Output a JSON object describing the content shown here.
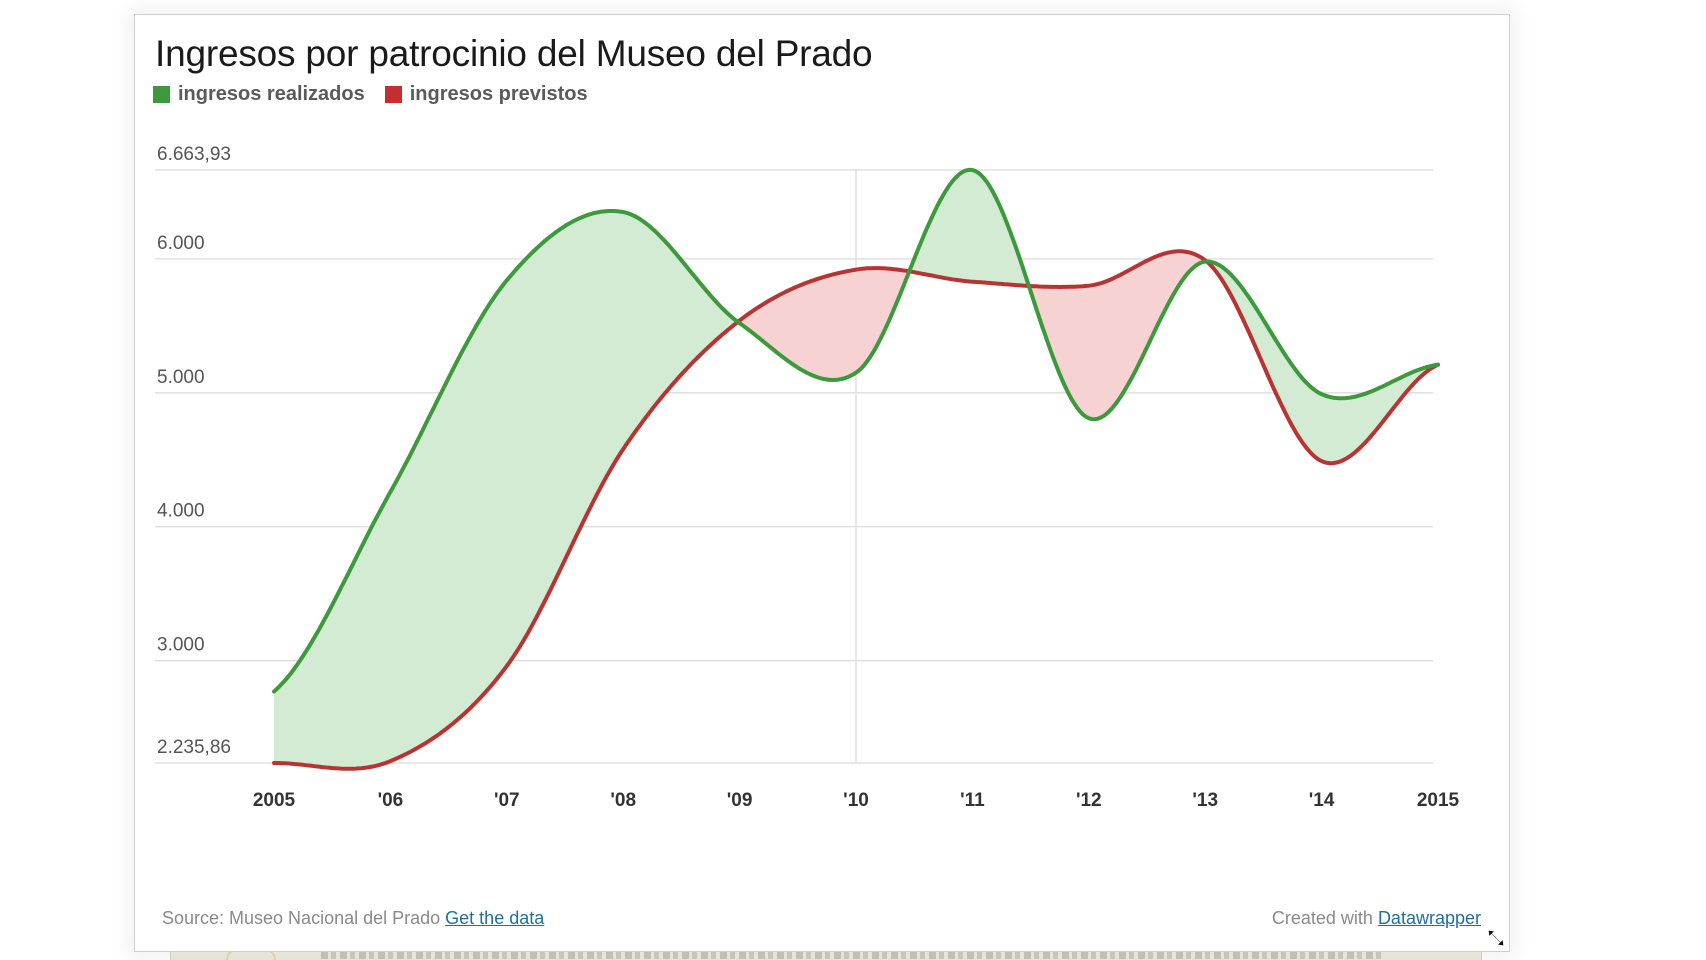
{
  "header": {
    "title": "Ingresos por patrocinio del Museo del Prado"
  },
  "legend": [
    {
      "label": "ingresos realizados",
      "color": "#3c9a3c"
    },
    {
      "label": "ingresos previstos",
      "color": "#c42e2e"
    }
  ],
  "footer": {
    "source_prefix": "Source: Museo Nacional del Prado",
    "source_link": "Get the data",
    "created_prefix": "Created with",
    "created_link": "Datawrapper"
  },
  "colors": {
    "realizados_line": "#3c9a3c",
    "previstos_line": "#b83434",
    "fill_above": "#d3ebd3",
    "fill_below": "#f6d2d2",
    "grid": "#dcdcdc",
    "axis_text": "#555555",
    "x_tick_text": "#333333"
  },
  "chart_data": {
    "type": "line",
    "title": "Ingresos por patrocinio del Museo del Prado",
    "xlabel": "",
    "ylabel": "",
    "categories": [
      "2005",
      "'06",
      "'07",
      "'08",
      "'09",
      "'10",
      "'11",
      "'12",
      "'13",
      "'14",
      "2015"
    ],
    "x": [
      2005,
      2006,
      2007,
      2008,
      2009,
      2010,
      2011,
      2012,
      2013,
      2014,
      2015
    ],
    "series": [
      {
        "name": "ingresos realizados",
        "color": "#3c9a3c",
        "values": [
          2770,
          4260,
          5840,
          6350,
          5520,
          5150,
          6663.93,
          4810,
          5980,
          4990,
          5210
        ]
      },
      {
        "name": "ingresos previstos",
        "color": "#b83434",
        "values": [
          2235.86,
          2250,
          2960,
          4580,
          5540,
          5920,
          5830,
          5800,
          5990,
          4490,
          5210
        ]
      }
    ],
    "fill_between": {
      "above_color": "#d3ebd3",
      "below_color": "#f6d2d2"
    },
    "y_ticks": [
      {
        "value": 6663.93,
        "label": "6.663,93"
      },
      {
        "value": 6000,
        "label": "6.000"
      },
      {
        "value": 5000,
        "label": "5.000"
      },
      {
        "value": 4000,
        "label": "4.000"
      },
      {
        "value": 3000,
        "label": "3.000"
      },
      {
        "value": 2235.86,
        "label": "2.235,86"
      }
    ],
    "ylim": [
      2235.86,
      6663.93
    ],
    "highlight_x": 2010,
    "grid": true,
    "legend_position": "top-left",
    "interpolation": "smooth"
  }
}
